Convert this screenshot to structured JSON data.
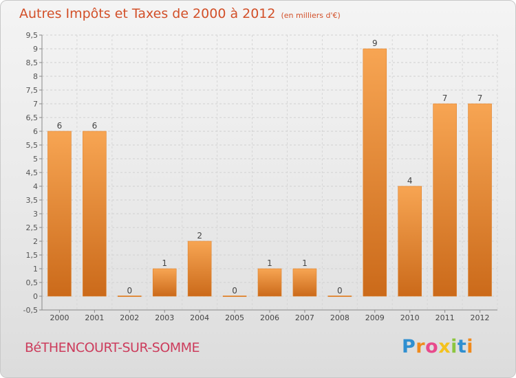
{
  "chart_data": {
    "type": "bar",
    "title": "Autres Impôts et Taxes de 2000 à 2012",
    "subtitle": "(en milliers d'€)",
    "categories": [
      "2000",
      "2001",
      "2002",
      "2003",
      "2004",
      "2005",
      "2006",
      "2007",
      "2008",
      "2009",
      "2010",
      "2011",
      "2012"
    ],
    "values": [
      6,
      6,
      0,
      1,
      2,
      0,
      1,
      1,
      0,
      9,
      4,
      7,
      7
    ],
    "data_labels": [
      "6",
      "6",
      "0",
      "1",
      "2",
      "0",
      "1",
      "1",
      "0",
      "9",
      "4",
      "7",
      "7"
    ],
    "ylim": [
      -0.5,
      9.5
    ],
    "yticks": [
      "-0,5",
      "0",
      "0,5",
      "1",
      "1,5",
      "2",
      "2,5",
      "3",
      "3,5",
      "4",
      "4,5",
      "5",
      "5,5",
      "6",
      "6,5",
      "7",
      "7,5",
      "8",
      "8,5",
      "9",
      "9,5"
    ],
    "grid": true,
    "bar_color": "#f39c3f",
    "xlabel": "",
    "ylabel": ""
  },
  "footer": {
    "commune": "BéTHENCOURT-SUR-SOMME",
    "brand_letters": [
      {
        "ch": "P",
        "color": "#2f8fd0"
      },
      {
        "ch": "r",
        "color": "#f08a1c"
      },
      {
        "ch": "o",
        "color": "#e84a8c"
      },
      {
        "ch": "x",
        "color": "#f4c21d"
      },
      {
        "ch": "i",
        "color": "#8cc63f"
      },
      {
        "ch": "t",
        "color": "#2f8fd0"
      },
      {
        "ch": "i",
        "color": "#f08a1c"
      }
    ]
  }
}
